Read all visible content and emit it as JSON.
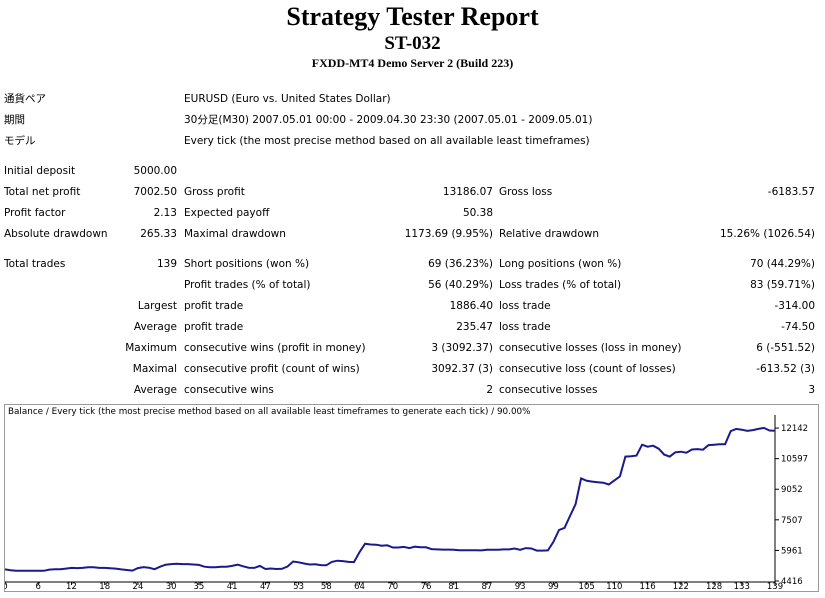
{
  "report": {
    "title": "Strategy Tester Report",
    "expert": "ST-032",
    "server": "FXDD-MT4 Demo Server 2 (Build 223)"
  },
  "info": [
    {
      "label": "通貨ペア",
      "value": "EURUSD (Euro vs. United States Dollar)"
    },
    {
      "label": "期間",
      "value": "30分足(M30) 2007.05.01 00:00 - 2009.04.30 23:30 (2007.05.01 - 2009.05.01)"
    },
    {
      "label": "モデル",
      "value": "Every tick (the most precise method based on all available least timeframes)"
    }
  ],
  "stats": {
    "initial_deposit": {
      "label": "Initial deposit",
      "value": "5000.00"
    },
    "total_net_profit": {
      "label": "Total net profit",
      "value": "7002.50"
    },
    "gross_profit": {
      "label": "Gross profit",
      "value": "13186.07"
    },
    "gross_loss": {
      "label": "Gross loss",
      "value": "-6183.57"
    },
    "profit_factor": {
      "label": "Profit factor",
      "value": "2.13"
    },
    "expected_payoff": {
      "label": "Expected payoff",
      "value": "50.38"
    },
    "absolute_drawdown": {
      "label": "Absolute drawdown",
      "value": "265.33"
    },
    "maximal_drawdown": {
      "label": "Maximal drawdown",
      "value": "1173.69 (9.95%)"
    },
    "relative_drawdown": {
      "label": "Relative drawdown",
      "value": "15.26% (1026.54)"
    },
    "total_trades": {
      "label": "Total trades",
      "value": "139"
    },
    "short_positions": {
      "label": "Short positions (won %)",
      "value": "69 (36.23%)"
    },
    "long_positions": {
      "label": "Long positions (won %)",
      "value": "70 (44.29%)"
    },
    "profit_trades": {
      "label": "Profit trades (% of total)",
      "value": "56 (40.29%)"
    },
    "loss_trades": {
      "label": "Loss trades (% of total)",
      "value": "83 (59.71%)"
    },
    "largest": {
      "label": "Largest",
      "p_label": "profit trade",
      "p_value": "1886.40",
      "l_label": "loss trade",
      "l_value": "-314.00"
    },
    "average": {
      "label": "Average",
      "p_label": "profit trade",
      "p_value": "235.47",
      "l_label": "loss trade",
      "l_value": "-74.50"
    },
    "maximum": {
      "label": "Maximum",
      "p_label": "consecutive wins (profit in money)",
      "p_value": "3 (3092.37)",
      "l_label": "consecutive losses (loss in money)",
      "l_value": "6 (-551.52)"
    },
    "maximal": {
      "label": "Maximal",
      "p_label": "consecutive profit (count of wins)",
      "p_value": "3092.37 (3)",
      "l_label": "consecutive loss (count of losses)",
      "l_value": "-613.52 (3)"
    },
    "average2": {
      "label": "Average",
      "p_label": "consecutive wins",
      "p_value": "2",
      "l_label": "consecutive losses",
      "l_value": "3"
    }
  },
  "chart_data": {
    "type": "line",
    "title": "Balance / Every tick (the most precise method based on all available least timeframes to generate each tick) / 90.00%",
    "xlabel": "",
    "ylabel": "",
    "x_ticks": [
      0,
      6,
      12,
      18,
      24,
      30,
      35,
      41,
      47,
      53,
      58,
      64,
      70,
      76,
      81,
      87,
      93,
      99,
      105,
      110,
      116,
      122,
      128,
      133,
      139
    ],
    "y_ticks": [
      4416,
      5961,
      7507,
      9052,
      10597,
      12142
    ],
    "xlim": [
      0,
      139
    ],
    "ylim": [
      4416,
      12600
    ],
    "grid": false,
    "colors": {
      "line": "#1a1a8c"
    },
    "series": [
      {
        "x": [
          0,
          1,
          2,
          3,
          4,
          5,
          6,
          7,
          8,
          9,
          10,
          11,
          12,
          13,
          14,
          15,
          16,
          17,
          18,
          19,
          20,
          21,
          22,
          23,
          24,
          25,
          26,
          27,
          28,
          29,
          30,
          31,
          32,
          33,
          34,
          35,
          36,
          37,
          38,
          39,
          40,
          41,
          42,
          43,
          44,
          45,
          46,
          47,
          48,
          49,
          50,
          51,
          52,
          53,
          54,
          55,
          56,
          57,
          58,
          59,
          60,
          61,
          62,
          63,
          64,
          65,
          66,
          67,
          68,
          69,
          70,
          71,
          72,
          73,
          74,
          75,
          76,
          77,
          78,
          79,
          80,
          81,
          82,
          83,
          84,
          85,
          86,
          87,
          88,
          89,
          90,
          91,
          92,
          93,
          94,
          95,
          96,
          97,
          98,
          99,
          100,
          101,
          102,
          103,
          104,
          105,
          106,
          107,
          108,
          109,
          110,
          111,
          112,
          113,
          114,
          115,
          116,
          117,
          118,
          119,
          120,
          121,
          122,
          123,
          124,
          125,
          126,
          127,
          128,
          129,
          130,
          131,
          132,
          133,
          134,
          135,
          136,
          137,
          138,
          139
        ],
        "y": [
          5000,
          4960,
          4930,
          4930,
          4930,
          4930,
          4930,
          4930,
          4990,
          5010,
          5010,
          5040,
          5080,
          5070,
          5080,
          5110,
          5110,
          5080,
          5080,
          5060,
          5040,
          5000,
          4970,
          4940,
          5070,
          5120,
          5090,
          5010,
          5140,
          5240,
          5270,
          5290,
          5270,
          5270,
          5250,
          5230,
          5140,
          5110,
          5110,
          5140,
          5140,
          5180,
          5240,
          5160,
          5090,
          5080,
          5180,
          5020,
          5050,
          5020,
          5030,
          5150,
          5400,
          5360,
          5300,
          5250,
          5260,
          5220,
          5210,
          5380,
          5440,
          5420,
          5380,
          5370,
          5870,
          6300,
          6260,
          6250,
          6200,
          6220,
          6110,
          6110,
          6140,
          6080,
          6150,
          6120,
          6120,
          6030,
          6010,
          6000,
          6000,
          5990,
          5970,
          5970,
          5970,
          5970,
          5960,
          5990,
          5990,
          5990,
          6010,
          6010,
          6060,
          5990,
          6080,
          6060,
          5950,
          5950,
          5960,
          6390,
          6990,
          7100,
          7700,
          8300,
          9600,
          9480,
          9440,
          9400,
          9380,
          9290,
          9500,
          9700,
          10700,
          10720,
          10750,
          11300,
          11200,
          11250,
          11100,
          10800,
          10700,
          10920,
          10950,
          10900,
          11060,
          11080,
          11050,
          11280,
          11300,
          11320,
          11320,
          11990,
          12100,
          12060,
          12000,
          12040,
          12100,
          12150,
          12020,
          12010
        ]
      }
    ]
  }
}
